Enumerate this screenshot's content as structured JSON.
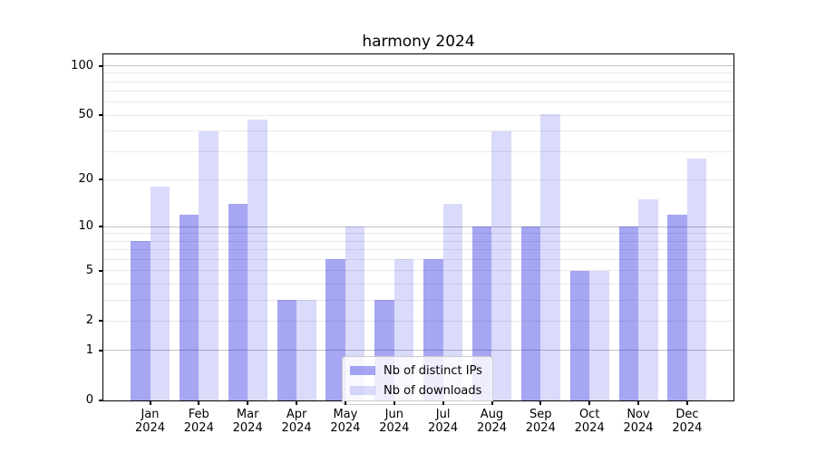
{
  "chart_data": {
    "type": "bar",
    "title": "harmony 2024",
    "year_label": "2024",
    "months": [
      "Jan",
      "Feb",
      "Mar",
      "Apr",
      "May",
      "Jun",
      "Jul",
      "Aug",
      "Sep",
      "Oct",
      "Nov",
      "Dec"
    ],
    "series": [
      {
        "name": "Nb of distinct IPs",
        "color": "rgba(0,0,220,0.35)",
        "values": [
          8,
          12,
          14,
          3,
          6,
          3,
          6,
          10,
          10,
          5,
          10,
          12
        ]
      },
      {
        "name": "Nb of downloads",
        "color": "rgba(0,0,220,0.145)",
        "values": [
          18,
          40,
          47,
          3,
          10,
          6,
          14,
          40,
          51,
          5,
          15,
          27
        ]
      }
    ],
    "yscale": "log1p",
    "ylim": [
      0,
      117
    ],
    "yticks": [
      0,
      1,
      2,
      5,
      10,
      20,
      50,
      100
    ],
    "minor_gridline_values": [
      3,
      4,
      6,
      7,
      8,
      9,
      30,
      40,
      60,
      70,
      80,
      90
    ],
    "decade_gridline_values": [
      1,
      10,
      100
    ],
    "grid": true,
    "legend_position": "lower center",
    "colors": {
      "bar_distinct_ips": "#a6a6f1",
      "bar_downloads": "#dadaf8",
      "major_grid": "#c3c3c3",
      "minor_grid": "#e9e9e9",
      "axis": "#000000",
      "background": "#ffffff"
    }
  }
}
